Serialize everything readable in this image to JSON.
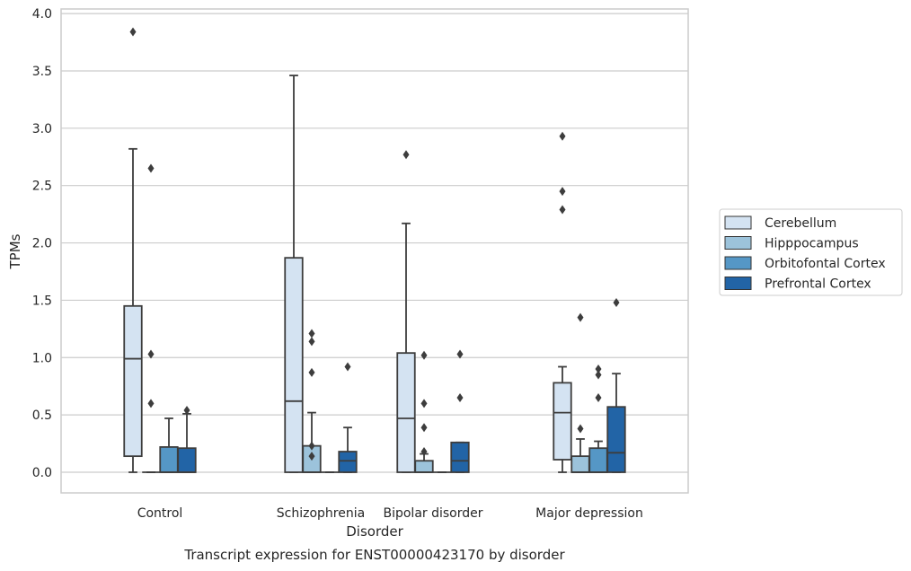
{
  "chart_data": {
    "type": "box",
    "title": "",
    "caption": "Transcript expression for ENST00000423170 by disorder",
    "xlabel": "Disorder",
    "ylabel": "TPMs",
    "ylim": [
      -0.18,
      4.04
    ],
    "yticks": [
      "0.0",
      "0.5",
      "1.0",
      "1.5",
      "2.0",
      "2.5",
      "3.0",
      "3.5",
      "4.0"
    ],
    "grid": true,
    "legend_position": "right",
    "categories": [
      "Control",
      "Schizophrenia",
      "Bipolar disorder",
      "Major depression"
    ],
    "series": [
      {
        "name": "Cerebellum",
        "color": "#d4e3f2",
        "boxes": [
          {
            "q1": 0.14,
            "median": 0.99,
            "q3": 1.45,
            "whisker_low": 0.0,
            "whisker_high": 2.82,
            "outliers": [
              3.84
            ]
          },
          {
            "q1": 0.0,
            "median": 0.62,
            "q3": 1.87,
            "whisker_low": 0.0,
            "whisker_high": 3.46,
            "outliers": []
          },
          {
            "q1": 0.0,
            "median": 0.47,
            "q3": 1.04,
            "whisker_low": 0.0,
            "whisker_high": 2.17,
            "outliers": [
              2.77
            ]
          },
          {
            "q1": 0.11,
            "median": 0.52,
            "q3": 0.78,
            "whisker_low": 0.0,
            "whisker_high": 0.92,
            "outliers": [
              2.93,
              2.45,
              2.29
            ]
          }
        ]
      },
      {
        "name": "Hipppocampus",
        "color": "#9cc3db",
        "boxes": [
          {
            "q1": 0.0,
            "median": 0.0,
            "q3": 0.0,
            "whisker_low": 0.0,
            "whisker_high": 0.0,
            "outliers": [
              2.65,
              1.03,
              0.6
            ]
          },
          {
            "q1": 0.0,
            "median": 0.0,
            "q3": 0.23,
            "whisker_low": 0.0,
            "whisker_high": 0.52,
            "outliers": [
              1.21,
              1.14,
              0.87,
              0.23,
              0.14
            ]
          },
          {
            "q1": 0.0,
            "median": 0.0,
            "q3": 0.1,
            "whisker_low": 0.0,
            "whisker_high": 0.16,
            "outliers": [
              1.02,
              0.6,
              0.39,
              0.18
            ]
          },
          {
            "q1": 0.0,
            "median": 0.0,
            "q3": 0.14,
            "whisker_low": 0.0,
            "whisker_high": 0.29,
            "outliers": [
              1.35,
              0.38
            ]
          }
        ]
      },
      {
        "name": "Orbitofontal Cortex",
        "color": "#5597c6",
        "boxes": [
          {
            "q1": 0.0,
            "median": 0.0,
            "q3": 0.22,
            "whisker_low": 0.0,
            "whisker_high": 0.47,
            "outliers": []
          },
          {
            "q1": 0.0,
            "median": 0.0,
            "q3": 0.0,
            "whisker_low": 0.0,
            "whisker_high": 0.0,
            "outliers": []
          },
          {
            "q1": 0.0,
            "median": 0.0,
            "q3": 0.0,
            "whisker_low": 0.0,
            "whisker_high": 0.0,
            "outliers": []
          },
          {
            "q1": 0.0,
            "median": 0.0,
            "q3": 0.21,
            "whisker_low": 0.0,
            "whisker_high": 0.27,
            "outliers": [
              0.9,
              0.85,
              0.65
            ]
          }
        ]
      },
      {
        "name": "Prefrontal Cortex",
        "color": "#2264a6",
        "boxes": [
          {
            "q1": 0.0,
            "median": 0.0,
            "q3": 0.21,
            "whisker_low": 0.0,
            "whisker_high": 0.51,
            "outliers": [
              0.54
            ]
          },
          {
            "q1": 0.0,
            "median": 0.1,
            "q3": 0.18,
            "whisker_low": 0.0,
            "whisker_high": 0.39,
            "outliers": [
              0.92
            ]
          },
          {
            "q1": 0.0,
            "median": 0.1,
            "q3": 0.26,
            "whisker_low": 0.0,
            "whisker_high": 0.26,
            "outliers": [
              1.03,
              0.65
            ]
          },
          {
            "q1": 0.0,
            "median": 0.17,
            "q3": 0.57,
            "whisker_low": 0.0,
            "whisker_high": 0.86,
            "outliers": [
              1.48
            ]
          }
        ]
      }
    ],
    "colors": {
      "line": "#3d3d3d",
      "grid": "#cccccc",
      "frame": "#cccccc",
      "text": "#262626"
    }
  }
}
